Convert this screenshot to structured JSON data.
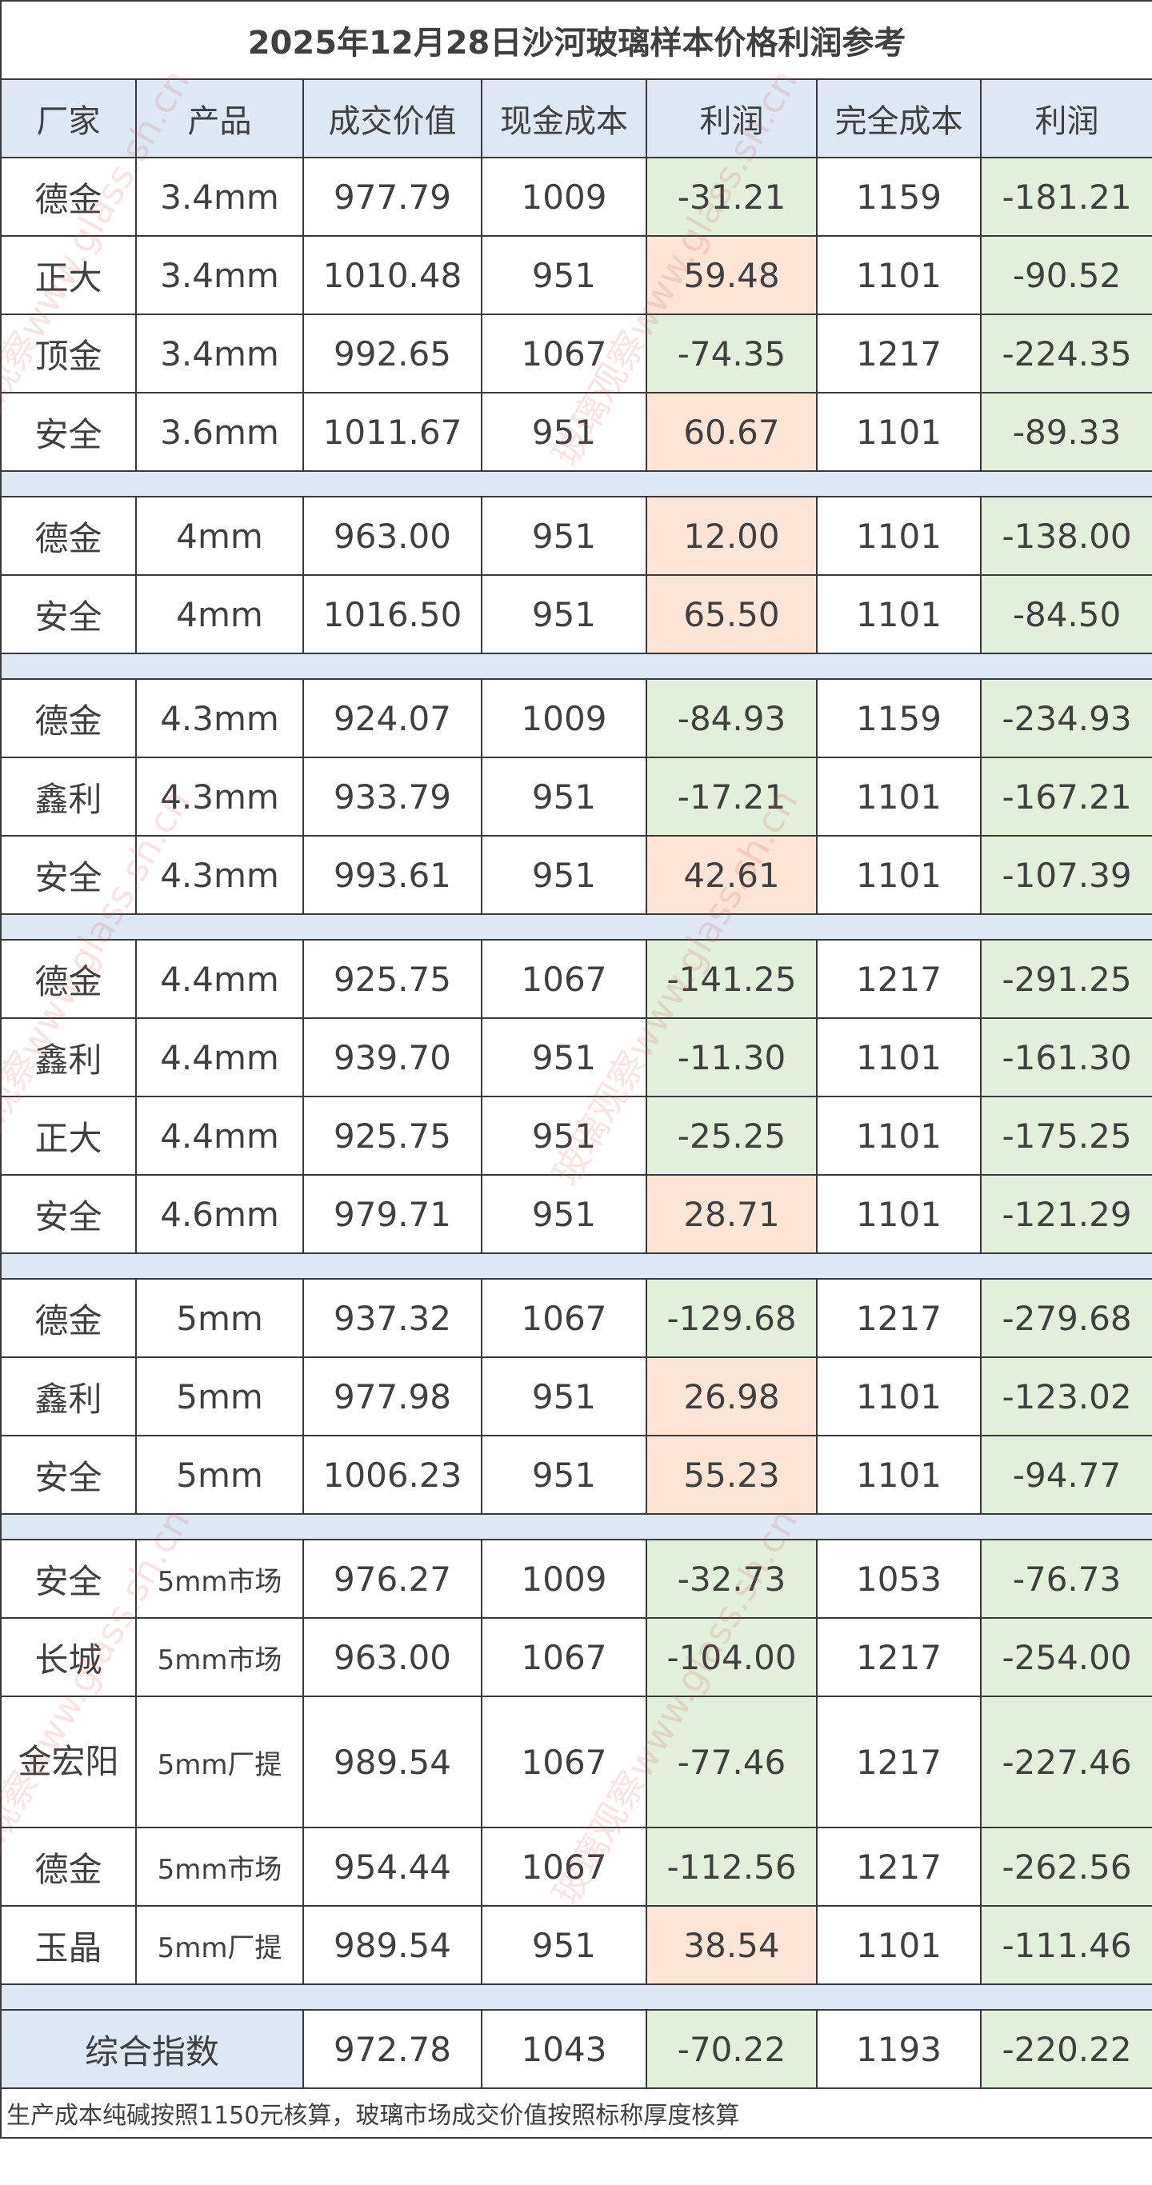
{
  "title": "2025年12月28日沙河玻璃样本价格利润参考",
  "headers": [
    "厂家",
    "产品",
    "成交价值",
    "现金成本",
    "利润",
    "完全成本",
    "利润"
  ],
  "colors": {
    "header_bg": "#dde8f4",
    "loss": "#e2efda",
    "profit": "#fce4d6",
    "text": "#404040"
  },
  "groups": [
    [
      [
        "德金",
        "3.4mm",
        "977.79",
        "1009",
        "-31.21",
        "1159",
        "-181.21"
      ],
      [
        "正大",
        "3.4mm",
        "1010.48",
        "951",
        "59.48",
        "1101",
        "-90.52"
      ],
      [
        "顶金",
        "3.4mm",
        "992.65",
        "1067",
        "-74.35",
        "1217",
        "-224.35"
      ],
      [
        "安全",
        "3.6mm",
        "1011.67",
        "951",
        "60.67",
        "1101",
        "-89.33"
      ]
    ],
    [
      [
        "德金",
        "4mm",
        "963.00",
        "951",
        "12.00",
        "1101",
        "-138.00"
      ],
      [
        "安全",
        "4mm",
        "1016.50",
        "951",
        "65.50",
        "1101",
        "-84.50"
      ]
    ],
    [
      [
        "德金",
        "4.3mm",
        "924.07",
        "1009",
        "-84.93",
        "1159",
        "-234.93"
      ],
      [
        "鑫利",
        "4.3mm",
        "933.79",
        "951",
        "-17.21",
        "1101",
        "-167.21"
      ],
      [
        "安全",
        "4.3mm",
        "993.61",
        "951",
        "42.61",
        "1101",
        "-107.39"
      ]
    ],
    [
      [
        "德金",
        "4.4mm",
        "925.75",
        "1067",
        "-141.25",
        "1217",
        "-291.25"
      ],
      [
        "鑫利",
        "4.4mm",
        "939.70",
        "951",
        "-11.30",
        "1101",
        "-161.30"
      ],
      [
        "正大",
        "4.4mm",
        "925.75",
        "951",
        "-25.25",
        "1101",
        "-175.25"
      ],
      [
        "安全",
        "4.6mm",
        "979.71",
        "951",
        "28.71",
        "1101",
        "-121.29"
      ]
    ],
    [
      [
        "德金",
        "5mm",
        "937.32",
        "1067",
        "-129.68",
        "1217",
        "-279.68"
      ],
      [
        "鑫利",
        "5mm",
        "977.98",
        "951",
        "26.98",
        "1101",
        "-123.02"
      ],
      [
        "安全",
        "5mm",
        "1006.23",
        "951",
        "55.23",
        "1101",
        "-94.77"
      ]
    ],
    [
      [
        "安全",
        "5mm市场",
        "976.27",
        "1009",
        "-32.73",
        "1053",
        "-76.73"
      ],
      [
        "长城",
        "5mm市场",
        "963.00",
        "1067",
        "-104.00",
        "1217",
        "-254.00"
      ],
      [
        "金宏阳",
        "5mm厂提",
        "989.54",
        "1067",
        "-77.46",
        "1217",
        "-227.46"
      ],
      [
        "德金",
        "5mm市场",
        "954.44",
        "1067",
        "-112.56",
        "1217",
        "-262.56"
      ],
      [
        "玉晶",
        "5mm厂提",
        "989.54",
        "951",
        "38.54",
        "1101",
        "-111.46"
      ]
    ]
  ],
  "summary": {
    "label": "综合指数",
    "values": [
      "972.78",
      "1043",
      "-70.22",
      "1193",
      "-220.22"
    ]
  },
  "footnote": "生产成本纯碱按照1150元核算，玻璃市场成交价值按照标称厚度核算",
  "watermark": "玻璃观察www.glass.sh.cn"
}
